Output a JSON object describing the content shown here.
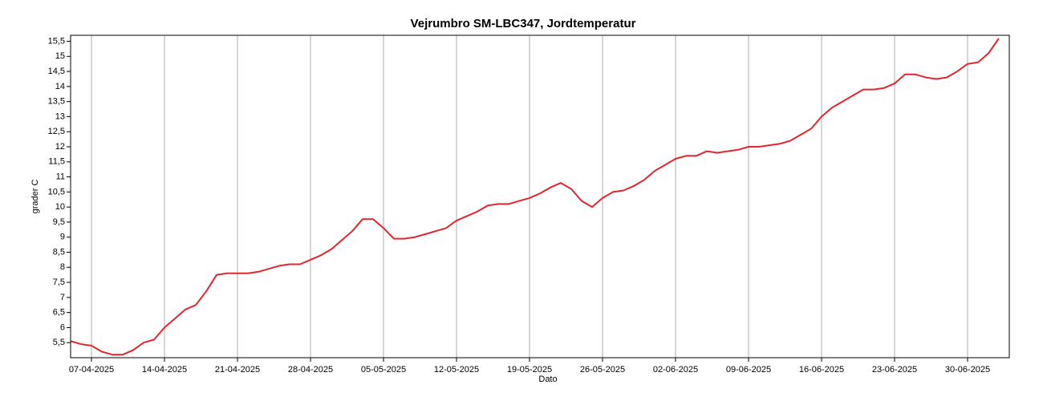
{
  "chart_data": {
    "type": "line",
    "title": "Vejrumbro SM-LBC347, Jordtemperatur",
    "x_label": "Dato",
    "y_label": "grader C",
    "x": [
      "05-04-2025",
      "06-04-2025",
      "07-04-2025",
      "08-04-2025",
      "09-04-2025",
      "10-04-2025",
      "11-04-2025",
      "12-04-2025",
      "13-04-2025",
      "14-04-2025",
      "15-04-2025",
      "16-04-2025",
      "17-04-2025",
      "18-04-2025",
      "19-04-2025",
      "20-04-2025",
      "21-04-2025",
      "22-04-2025",
      "23-04-2025",
      "24-04-2025",
      "25-04-2025",
      "26-04-2025",
      "27-04-2025",
      "28-04-2025",
      "29-04-2025",
      "30-04-2025",
      "01-05-2025",
      "02-05-2025",
      "03-05-2025",
      "04-05-2025",
      "05-05-2025",
      "06-05-2025",
      "07-05-2025",
      "08-05-2025",
      "09-05-2025",
      "10-05-2025",
      "11-05-2025",
      "12-05-2025",
      "13-05-2025",
      "14-05-2025",
      "15-05-2025",
      "16-05-2025",
      "17-05-2025",
      "18-05-2025",
      "19-05-2025",
      "20-05-2025",
      "21-05-2025",
      "22-05-2025",
      "23-05-2025",
      "24-05-2025",
      "25-05-2025",
      "26-05-2025",
      "27-05-2025",
      "28-05-2025",
      "29-05-2025",
      "30-05-2025",
      "31-05-2025",
      "01-06-2025",
      "02-06-2025",
      "03-06-2025",
      "04-06-2025",
      "05-06-2025",
      "06-06-2025",
      "07-06-2025",
      "08-06-2025",
      "09-06-2025",
      "10-06-2025",
      "11-06-2025",
      "12-06-2025",
      "13-06-2025",
      "14-06-2025",
      "15-06-2025",
      "16-06-2025",
      "17-06-2025",
      "18-06-2025",
      "19-06-2025",
      "20-06-2025",
      "21-06-2025",
      "22-06-2025",
      "23-06-2025",
      "24-06-2025",
      "25-06-2025",
      "26-06-2025",
      "27-06-2025",
      "28-06-2025",
      "29-06-2025",
      "30-06-2025",
      "01-07-2025",
      "02-07-2025",
      "03-07-2025"
    ],
    "series": [
      {
        "name": "Jordtemperatur",
        "color": "#e0262f",
        "values": [
          5.55,
          5.45,
          5.4,
          5.2,
          5.1,
          5.1,
          5.25,
          5.5,
          5.6,
          6.0,
          6.3,
          6.6,
          6.75,
          7.2,
          7.75,
          7.8,
          7.8,
          7.8,
          7.85,
          7.95,
          8.05,
          8.1,
          8.1,
          8.25,
          8.4,
          8.6,
          8.9,
          9.2,
          9.6,
          9.6,
          9.3,
          8.95,
          8.95,
          9.0,
          9.1,
          9.2,
          9.3,
          9.55,
          9.7,
          9.85,
          10.05,
          10.1,
          10.1,
          10.2,
          10.3,
          10.45,
          10.65,
          10.8,
          10.6,
          10.2,
          10.0,
          10.3,
          10.5,
          10.55,
          10.7,
          10.9,
          11.2,
          11.4,
          11.6,
          11.7,
          11.7,
          11.85,
          11.8,
          11.85,
          11.9,
          12.0,
          12.0,
          12.05,
          12.1,
          12.2,
          12.4,
          12.6,
          13.0,
          13.3,
          13.5,
          13.7,
          13.9,
          13.9,
          13.95,
          14.1,
          14.4,
          14.4,
          14.3,
          14.25,
          14.3,
          14.5,
          14.75,
          14.8,
          15.1,
          15.6
        ]
      }
    ],
    "xlim": [
      "05-04-2025",
      "04-07-2025"
    ],
    "xticks": [
      "07-04-2025",
      "14-04-2025",
      "21-04-2025",
      "28-04-2025",
      "05-05-2025",
      "12-05-2025",
      "19-05-2025",
      "26-05-2025",
      "02-06-2025",
      "09-06-2025",
      "16-06-2025",
      "23-06-2025",
      "30-06-2025"
    ],
    "ylim": [
      5,
      15.7
    ],
    "yticks": [
      {
        "value": 5.5,
        "label": "5,5"
      },
      6,
      {
        "value": 6.5,
        "label": "6,5"
      },
      7,
      {
        "value": 7.5,
        "label": "7,5"
      },
      8,
      {
        "value": 8.5,
        "label": "8,5"
      },
      9,
      {
        "value": 9.5,
        "label": "9,5"
      },
      10,
      {
        "value": 10.5,
        "label": "10,5"
      },
      11,
      {
        "value": 11.5,
        "label": "11,5"
      },
      12,
      {
        "value": 12.5,
        "label": "12,5"
      },
      13,
      {
        "value": 13.5,
        "label": "13,5"
      },
      14,
      {
        "value": 14.5,
        "label": "14,5"
      },
      15,
      {
        "value": 15.5,
        "label": "15,5"
      }
    ],
    "grid": "x"
  }
}
